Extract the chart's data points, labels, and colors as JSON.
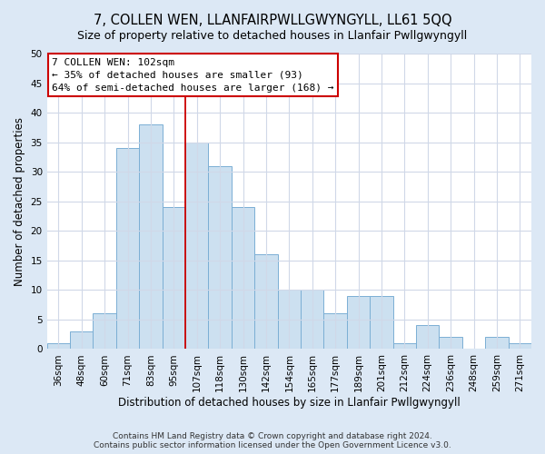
{
  "title": "7, COLLEN WEN, LLANFAIRPWLLGWYNGYLL, LL61 5QQ",
  "subtitle": "Size of property relative to detached houses in Llanfair Pwllgwyngyll",
  "xlabel": "Distribution of detached houses by size in Llanfair Pwllgwyngyll",
  "ylabel": "Number of detached properties",
  "categories": [
    "36sqm",
    "48sqm",
    "60sqm",
    "71sqm",
    "83sqm",
    "95sqm",
    "107sqm",
    "118sqm",
    "130sqm",
    "142sqm",
    "154sqm",
    "165sqm",
    "177sqm",
    "189sqm",
    "201sqm",
    "212sqm",
    "224sqm",
    "236sqm",
    "248sqm",
    "259sqm",
    "271sqm"
  ],
  "values": [
    1,
    3,
    6,
    34,
    38,
    24,
    35,
    31,
    24,
    16,
    10,
    10,
    6,
    9,
    9,
    1,
    4,
    2,
    0,
    2,
    1
  ],
  "bar_color": "#cce0f0",
  "bar_edge_color": "#7bafd4",
  "vline_x": 5.5,
  "vline_color": "#cc0000",
  "annotation_text": "7 COLLEN WEN: 102sqm\n← 35% of detached houses are smaller (93)\n64% of semi-detached houses are larger (168) →",
  "annotation_box_color": "#ffffff",
  "annotation_box_edge": "#cc0000",
  "footer": "Contains HM Land Registry data © Crown copyright and database right 2024.\nContains public sector information licensed under the Open Government Licence v3.0.",
  "ylim": [
    0,
    50
  ],
  "yticks": [
    0,
    5,
    10,
    15,
    20,
    25,
    30,
    35,
    40,
    45,
    50
  ],
  "title_fontsize": 10.5,
  "xlabel_fontsize": 8.5,
  "ylabel_fontsize": 8.5,
  "tick_fontsize": 7.5,
  "annotation_fontsize": 8,
  "footer_fontsize": 6.5,
  "plot_bg": "#ffffff",
  "fig_bg": "#dce8f5"
}
